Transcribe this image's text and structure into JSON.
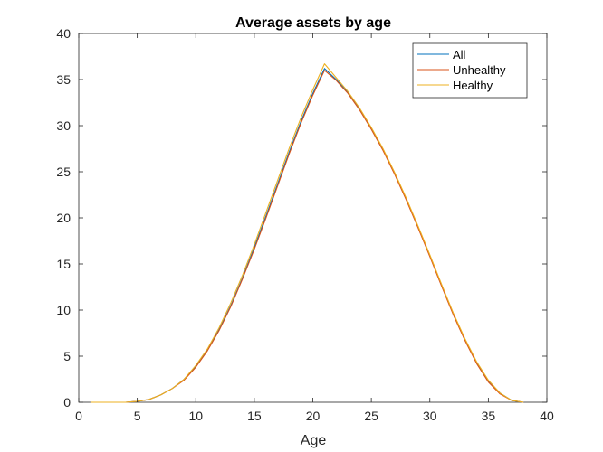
{
  "chart_data": {
    "type": "line",
    "title": "Average assets by age",
    "xlabel": "Age",
    "ylabel": "",
    "xlim": [
      0,
      40
    ],
    "ylim": [
      0,
      40
    ],
    "xticks": [
      0,
      5,
      10,
      15,
      20,
      25,
      30,
      35,
      40
    ],
    "yticks": [
      0,
      5,
      10,
      15,
      20,
      25,
      30,
      35,
      40
    ],
    "grid": false,
    "legend_position": "top-right",
    "x": [
      1,
      2,
      3,
      4,
      5,
      6,
      7,
      8,
      9,
      10,
      11,
      12,
      13,
      14,
      15,
      16,
      17,
      18,
      19,
      20,
      21,
      22,
      23,
      24,
      25,
      26,
      27,
      28,
      29,
      30,
      31,
      32,
      33,
      34,
      35,
      36,
      37,
      38
    ],
    "series": [
      {
        "name": "All",
        "color": "#0072BD",
        "values": [
          0,
          0,
          0,
          0,
          0.1,
          0.3,
          0.8,
          1.5,
          2.5,
          3.9,
          5.7,
          7.9,
          10.5,
          13.5,
          16.8,
          20.2,
          23.7,
          27.2,
          30.5,
          33.5,
          36.2,
          35.0,
          33.6,
          31.8,
          29.7,
          27.4,
          24.8,
          22.0,
          19.0,
          15.9,
          12.7,
          9.6,
          6.8,
          4.3,
          2.3,
          1.0,
          0.2,
          0
        ]
      },
      {
        "name": "Unhealthy",
        "color": "#D95319",
        "values": [
          0,
          0,
          0,
          0,
          0.1,
          0.3,
          0.8,
          1.5,
          2.4,
          3.8,
          5.6,
          7.8,
          10.4,
          13.4,
          16.6,
          20.0,
          23.5,
          27.0,
          30.3,
          33.3,
          36.0,
          34.9,
          33.5,
          31.7,
          29.6,
          27.3,
          24.7,
          21.9,
          18.9,
          15.8,
          12.6,
          9.5,
          6.7,
          4.2,
          2.2,
          0.9,
          0.2,
          0
        ]
      },
      {
        "name": "Healthy",
        "color": "#EDB120",
        "values": [
          0,
          0,
          0,
          0,
          0.1,
          0.3,
          0.8,
          1.5,
          2.5,
          4.0,
          5.8,
          8.1,
          10.8,
          13.8,
          17.1,
          20.6,
          24.1,
          27.6,
          30.9,
          33.9,
          36.7,
          35.2,
          33.7,
          31.9,
          29.8,
          27.5,
          24.9,
          22.1,
          19.1,
          16.0,
          12.8,
          9.7,
          6.9,
          4.4,
          2.4,
          1.0,
          0.2,
          0
        ]
      }
    ]
  }
}
